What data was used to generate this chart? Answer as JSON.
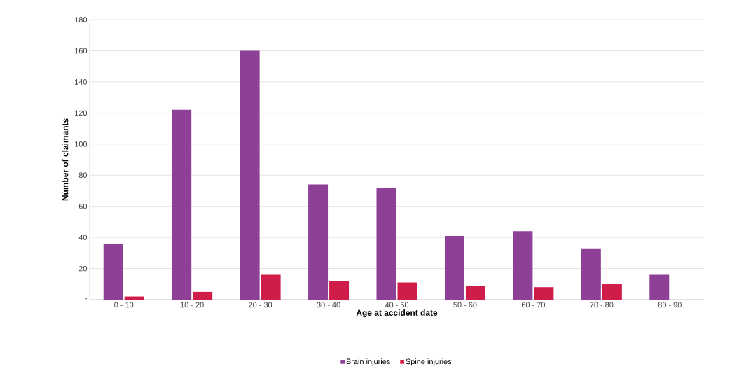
{
  "chart_data": {
    "type": "bar",
    "xlabel": "Age at accident date",
    "ylabel": "Number of claimants",
    "categories": [
      "0 - 10",
      "10 - 20",
      "20 - 30",
      "30 - 40",
      "40 - 50",
      "50 - 60",
      "60 - 70",
      "70 - 80",
      "80 - 90"
    ],
    "series": [
      {
        "name": "Brain injuries",
        "color": "#8e3f96",
        "values": [
          36,
          122,
          160,
          74,
          72,
          41,
          44,
          33,
          16
        ]
      },
      {
        "name": "Spine injuries",
        "color": "#d01c48",
        "values": [
          2,
          5,
          16,
          12,
          11,
          9,
          8,
          10,
          null
        ]
      }
    ],
    "ylim": [
      0,
      180
    ],
    "yticks": [
      {
        "value": 0,
        "label": "-"
      },
      20,
      40,
      60,
      80,
      100,
      120,
      140,
      160,
      180
    ],
    "grid": "y",
    "legend": "bottom"
  }
}
